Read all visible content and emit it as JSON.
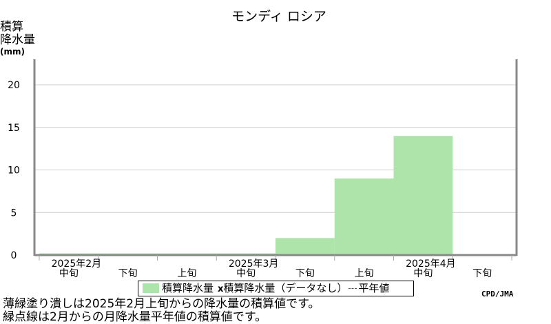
{
  "chart_data": {
    "type": "area",
    "title": "モンディ ロシア",
    "ylabel": [
      "積算",
      "降水量",
      "(mm)"
    ],
    "ylim": [
      0,
      23
    ],
    "yticks": [
      0,
      5,
      10,
      15,
      20
    ],
    "grid": true,
    "bins": [
      "2月中旬",
      "2月下旬",
      "3月上旬",
      "3月中旬",
      "3月下旬",
      "4月上旬",
      "4月中旬",
      "4月下旬"
    ],
    "x_periods": [
      {
        "label": "中旬",
        "month": "2025年2月"
      },
      {
        "label": "下旬",
        "month": ""
      },
      {
        "label": "上旬",
        "month": ""
      },
      {
        "label": "中旬",
        "month": "2025年3月"
      },
      {
        "label": "下旬",
        "month": ""
      },
      {
        "label": "上旬",
        "month": ""
      },
      {
        "label": "中旬",
        "month": "2025年4月"
      },
      {
        "label": "下旬",
        "month": ""
      }
    ],
    "series": [
      {
        "name": "積算降水量",
        "color": "#aee4aa",
        "values": [
          0.2,
          0.2,
          0.2,
          0.2,
          2.0,
          9.0,
          14.0,
          null
        ]
      }
    ],
    "legend": [
      {
        "label": "積算降水量",
        "marker": "fill",
        "color": "#aee4aa"
      },
      {
        "label": "積算降水量（データなし）",
        "marker": "x"
      },
      {
        "label": "平年値",
        "marker": "dashed"
      }
    ],
    "legend_position": "bottom"
  },
  "credit": "CPD/JMA",
  "notes": [
    "薄緑塗り潰しは2025年2月上旬からの降水量の積算値です。",
    "緑点線は2月からの月降水量平年値の積算値です。"
  ]
}
